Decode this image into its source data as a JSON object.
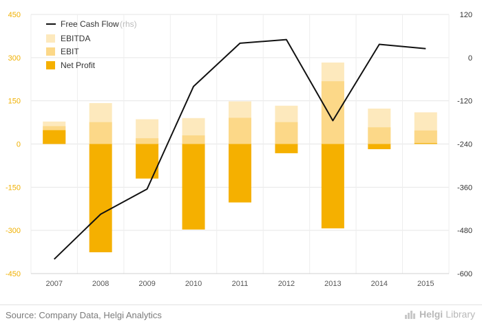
{
  "chart_data": {
    "type": "bar",
    "categories": [
      "2007",
      "2008",
      "2009",
      "2010",
      "2011",
      "2012",
      "2013",
      "2014",
      "2015"
    ],
    "series": [
      {
        "name": "EBITDA",
        "values": [
          78,
          142,
          86,
          90,
          148,
          133,
          283,
          123,
          110
        ]
      },
      {
        "name": "EBIT",
        "values": [
          62,
          76,
          20,
          30,
          91,
          76,
          218,
          58,
          47
        ]
      },
      {
        "name": "Net Profit",
        "values": [
          48,
          -376,
          -120,
          -297,
          -203,
          -32,
          -293,
          -18,
          3
        ]
      },
      {
        "name": "Free Cash Flow",
        "axis": "rhs",
        "type": "line",
        "values": [
          -560,
          -435,
          -365,
          -80,
          40,
          50,
          -175,
          37,
          25
        ]
      }
    ],
    "ylim_left": [
      -450,
      450
    ],
    "yticks_left": [
      450,
      300,
      150,
      0,
      -150,
      -300,
      -450
    ],
    "ylim_right": [
      -600,
      120
    ],
    "yticks_right": [
      120,
      0,
      -120,
      -240,
      -360,
      -480,
      -600
    ],
    "legend_placement": "top-left",
    "grid": true,
    "colors": {
      "EBITDA": "#fde9bd",
      "EBIT": "#fcd888",
      "Net Profit": "#f5b000",
      "Free Cash Flow": "#111111"
    }
  },
  "legend": {
    "fcf_label": "Free Cash Flow",
    "fcf_suffix": "(rhs)",
    "ebitda_label": "EBITDA",
    "ebit_label": "EBIT",
    "netprofit_label": "Net Profit"
  },
  "footer": {
    "source": "Source: Company Data, Helgi Analytics",
    "brand_a": "Helgi",
    "brand_b": "Library"
  }
}
